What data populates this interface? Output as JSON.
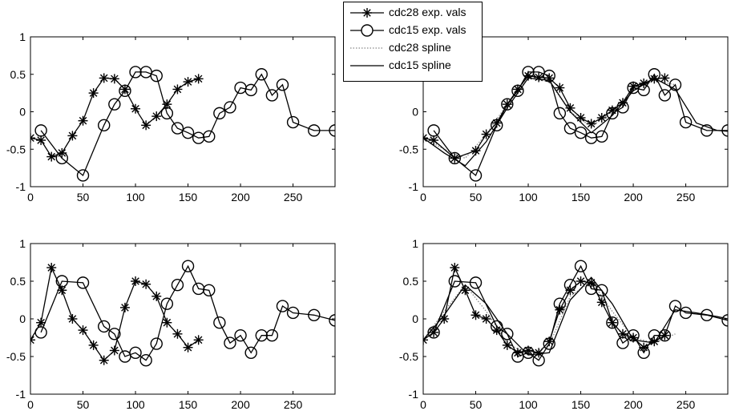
{
  "chart_data": [
    {
      "type": "line",
      "xlim": [
        0,
        290
      ],
      "ylim": [
        -1,
        1
      ],
      "xticks": [
        0,
        50,
        100,
        150,
        200,
        250
      ],
      "yticks": [
        -1,
        -0.5,
        0,
        0.5,
        1
      ],
      "ytick_labels": [
        "-1",
        "-0.5",
        "0",
        "0.5",
        "1"
      ],
      "series": [
        {
          "name": "cdc28 exp. vals",
          "marker": "star",
          "x": [
            0,
            10,
            20,
            30,
            40,
            50,
            60,
            70,
            80,
            90,
            100,
            110,
            120,
            130,
            140,
            150,
            160
          ],
          "y": [
            -0.35,
            -0.38,
            -0.6,
            -0.55,
            -0.32,
            -0.12,
            0.25,
            0.45,
            0.44,
            0.3,
            0.04,
            -0.18,
            -0.06,
            0.1,
            0.3,
            0.4,
            0.44
          ]
        },
        {
          "name": "cdc15 exp. vals",
          "marker": "circle",
          "x": [
            10,
            30,
            50,
            70,
            80,
            90,
            100,
            110,
            120,
            130,
            140,
            150,
            160,
            170,
            180,
            190,
            200,
            210,
            220,
            230,
            240,
            250,
            270,
            290
          ],
          "y": [
            -0.25,
            -0.62,
            -0.85,
            -0.18,
            0.1,
            0.28,
            0.53,
            0.53,
            0.48,
            -0.02,
            -0.22,
            -0.28,
            -0.35,
            -0.33,
            -0.02,
            0.06,
            0.32,
            0.29,
            0.5,
            0.22,
            0.36,
            -0.14,
            -0.25,
            -0.25
          ]
        }
      ]
    },
    {
      "type": "line",
      "xlim": [
        0,
        290
      ],
      "ylim": [
        -1,
        1
      ],
      "xticks": [
        0,
        50,
        100,
        150,
        200,
        250
      ],
      "yticks": [
        -1,
        -0.5,
        0
      ],
      "ytick_labels": [
        "-1",
        "-0.5",
        "0"
      ],
      "series": [
        {
          "name": "cdc28 exp. vals",
          "marker": "star",
          "x": [
            0,
            10,
            30,
            50,
            60,
            70,
            80,
            90,
            100,
            110,
            120,
            130,
            140,
            150,
            160,
            170,
            180,
            190,
            200,
            210,
            220,
            230
          ],
          "y": [
            -0.35,
            -0.38,
            -0.62,
            -0.52,
            -0.3,
            -0.15,
            0.1,
            0.3,
            0.48,
            0.46,
            0.45,
            0.32,
            0.05,
            -0.08,
            -0.16,
            -0.08,
            0.02,
            0.12,
            0.34,
            0.38,
            0.44,
            0.45
          ]
        },
        {
          "name": "cdc15 exp. vals",
          "marker": "circle",
          "x": [
            10,
            30,
            50,
            70,
            80,
            90,
            100,
            110,
            120,
            130,
            140,
            150,
            160,
            170,
            180,
            190,
            200,
            210,
            220,
            230,
            240,
            250,
            270,
            290
          ],
          "y": [
            -0.25,
            -0.62,
            -0.85,
            -0.18,
            0.1,
            0.28,
            0.53,
            0.53,
            0.48,
            -0.02,
            -0.22,
            -0.28,
            -0.35,
            -0.33,
            -0.02,
            0.06,
            0.32,
            0.29,
            0.5,
            0.22,
            0.36,
            -0.14,
            -0.25,
            -0.25
          ]
        },
        {
          "name": "cdc28 spline",
          "marker": "none",
          "style": "dotted",
          "x": [
            0,
            20,
            40,
            60,
            80,
            100,
            120,
            140,
            160,
            180,
            200,
            220,
            240
          ],
          "y": [
            -0.35,
            -0.5,
            -0.62,
            -0.3,
            0.1,
            0.45,
            0.4,
            0.0,
            -0.2,
            0.0,
            0.3,
            0.42,
            0.36
          ]
        },
        {
          "name": "cdc15 spline",
          "marker": "none",
          "style": "solid",
          "x": [
            0,
            20,
            40,
            60,
            80,
            100,
            120,
            140,
            160,
            180,
            200,
            220,
            240,
            260,
            280,
            290
          ],
          "y": [
            -0.35,
            -0.55,
            -0.72,
            -0.4,
            0.05,
            0.45,
            0.42,
            0.0,
            -0.28,
            -0.05,
            0.28,
            0.45,
            0.3,
            -0.15,
            -0.25,
            -0.26
          ]
        }
      ]
    },
    {
      "type": "line",
      "xlim": [
        0,
        290
      ],
      "ylim": [
        -1,
        1
      ],
      "xticks": [
        0,
        50,
        100,
        150,
        200,
        250
      ],
      "yticks": [
        -1,
        -0.5,
        0,
        0.5,
        1
      ],
      "ytick_labels": [
        "-1",
        "-0.5",
        "0",
        "0.5",
        "1"
      ],
      "series": [
        {
          "name": "cdc28 exp. vals",
          "marker": "star",
          "x": [
            0,
            10,
            20,
            30,
            40,
            50,
            60,
            70,
            80,
            90,
            100,
            110,
            120,
            130,
            140,
            150,
            160
          ],
          "y": [
            -0.28,
            -0.05,
            0.68,
            0.38,
            0.0,
            -0.15,
            -0.35,
            -0.55,
            -0.42,
            0.15,
            0.5,
            0.46,
            0.3,
            -0.05,
            -0.2,
            -0.38,
            -0.28
          ]
        },
        {
          "name": "cdc15 exp. vals",
          "marker": "circle",
          "x": [
            10,
            30,
            50,
            70,
            80,
            90,
            100,
            110,
            120,
            130,
            140,
            150,
            160,
            170,
            180,
            190,
            200,
            210,
            220,
            230,
            240,
            250,
            270,
            290
          ],
          "y": [
            -0.18,
            0.5,
            0.48,
            -0.1,
            -0.2,
            -0.5,
            -0.45,
            -0.55,
            -0.33,
            0.2,
            0.45,
            0.7,
            0.4,
            0.38,
            -0.05,
            -0.32,
            -0.22,
            -0.45,
            -0.22,
            -0.22,
            0.17,
            0.08,
            0.05,
            -0.02
          ]
        }
      ]
    },
    {
      "type": "line",
      "xlim": [
        0,
        290
      ],
      "ylim": [
        -1,
        1
      ],
      "xticks": [
        0,
        50,
        100,
        150,
        200,
        250
      ],
      "yticks": [
        -1,
        -0.5,
        0,
        0.5,
        1
      ],
      "ytick_labels": [
        "-1",
        "-0.5",
        "0",
        "0.5",
        "1"
      ],
      "series": [
        {
          "name": "cdc28 exp. vals",
          "marker": "star",
          "x": [
            0,
            10,
            20,
            30,
            40,
            50,
            60,
            70,
            80,
            90,
            100,
            110,
            120,
            130,
            140,
            150,
            160,
            170,
            180,
            190,
            200,
            210,
            220,
            230
          ],
          "y": [
            -0.28,
            -0.18,
            0.0,
            0.68,
            0.38,
            0.05,
            0.0,
            -0.15,
            -0.35,
            -0.45,
            -0.42,
            -0.45,
            -0.3,
            0.12,
            0.38,
            0.5,
            0.48,
            0.22,
            -0.05,
            -0.2,
            -0.25,
            -0.38,
            -0.3,
            -0.22
          ]
        },
        {
          "name": "cdc15 exp. vals",
          "marker": "circle",
          "x": [
            10,
            30,
            50,
            70,
            80,
            90,
            100,
            110,
            120,
            130,
            140,
            150,
            160,
            170,
            180,
            190,
            200,
            210,
            220,
            230,
            240,
            250,
            270,
            290
          ],
          "y": [
            -0.18,
            0.5,
            0.48,
            -0.1,
            -0.2,
            -0.5,
            -0.45,
            -0.55,
            -0.33,
            0.2,
            0.45,
            0.7,
            0.4,
            0.38,
            -0.05,
            -0.32,
            -0.22,
            -0.45,
            -0.22,
            -0.22,
            0.17,
            0.08,
            0.05,
            -0.02
          ]
        },
        {
          "name": "cdc28 spline",
          "marker": "none",
          "style": "dotted",
          "x": [
            0,
            20,
            40,
            60,
            80,
            100,
            120,
            140,
            160,
            180,
            200,
            220,
            240
          ],
          "y": [
            -0.28,
            0.1,
            0.45,
            0.1,
            -0.32,
            -0.48,
            -0.35,
            0.3,
            0.5,
            0.1,
            -0.25,
            -0.32,
            -0.2
          ]
        },
        {
          "name": "cdc15 spline",
          "marker": "none",
          "style": "solid",
          "x": [
            0,
            20,
            40,
            60,
            80,
            100,
            120,
            140,
            160,
            180,
            200,
            220,
            240,
            260,
            280,
            290
          ],
          "y": [
            -0.28,
            0.05,
            0.45,
            0.2,
            -0.2,
            -0.48,
            -0.45,
            0.25,
            0.55,
            0.2,
            -0.28,
            -0.32,
            0.12,
            0.08,
            0.03,
            0.0
          ]
        }
      ]
    }
  ],
  "legend": {
    "entries": [
      {
        "label": "cdc28 exp. vals",
        "marker": "star",
        "line": "solid"
      },
      {
        "label": "cdc15 exp. vals",
        "marker": "circle",
        "line": "solid"
      },
      {
        "label": "cdc28 spline",
        "marker": "none",
        "line": "dotted"
      },
      {
        "label": "cdc15 spline",
        "marker": "none",
        "line": "solid"
      }
    ]
  },
  "colors": {
    "axes": "#000000",
    "series": "#000000",
    "spline_dotted": "#888888",
    "background": "#ffffff"
  }
}
